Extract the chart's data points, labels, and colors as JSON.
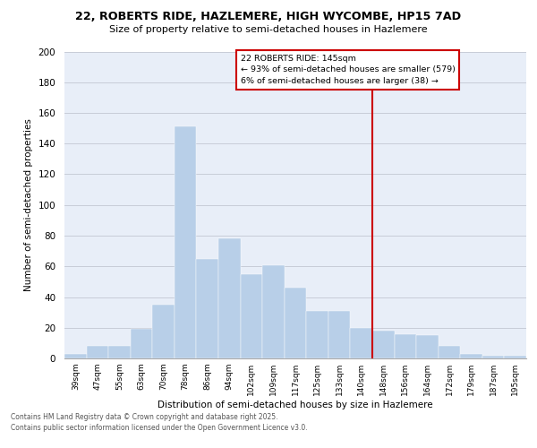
{
  "title_line1": "22, ROBERTS RIDE, HAZLEMERE, HIGH WYCOMBE, HP15 7AD",
  "title_line2": "Size of property relative to semi-detached houses in Hazlemere",
  "xlabel": "Distribution of semi-detached houses by size in Hazlemere",
  "ylabel": "Number of semi-detached properties",
  "categories": [
    "39sqm",
    "47sqm",
    "55sqm",
    "63sqm",
    "70sqm",
    "78sqm",
    "86sqm",
    "94sqm",
    "102sqm",
    "109sqm",
    "117sqm",
    "125sqm",
    "133sqm",
    "140sqm",
    "148sqm",
    "156sqm",
    "164sqm",
    "172sqm",
    "179sqm",
    "187sqm",
    "195sqm"
  ],
  "values": [
    3,
    8,
    8,
    19,
    35,
    151,
    65,
    78,
    55,
    61,
    46,
    31,
    31,
    20,
    18,
    16,
    15,
    8,
    3,
    2,
    2
  ],
  "bar_color": "#b8cfe8",
  "highlight_index": 14,
  "highlight_color": "#cc0000",
  "annotation_title": "22 ROBERTS RIDE: 145sqm",
  "annotation_line1": "← 93% of semi-detached houses are smaller (579)",
  "annotation_line2": "6% of semi-detached houses are larger (38) →",
  "ylim": [
    0,
    200
  ],
  "yticks": [
    0,
    20,
    40,
    60,
    80,
    100,
    120,
    140,
    160,
    180,
    200
  ],
  "footer1": "Contains HM Land Registry data © Crown copyright and database right 2025.",
  "footer2": "Contains public sector information licensed under the Open Government Licence v3.0.",
  "bg_color": "#e8eef8",
  "grid_color": "#c8ccd8"
}
